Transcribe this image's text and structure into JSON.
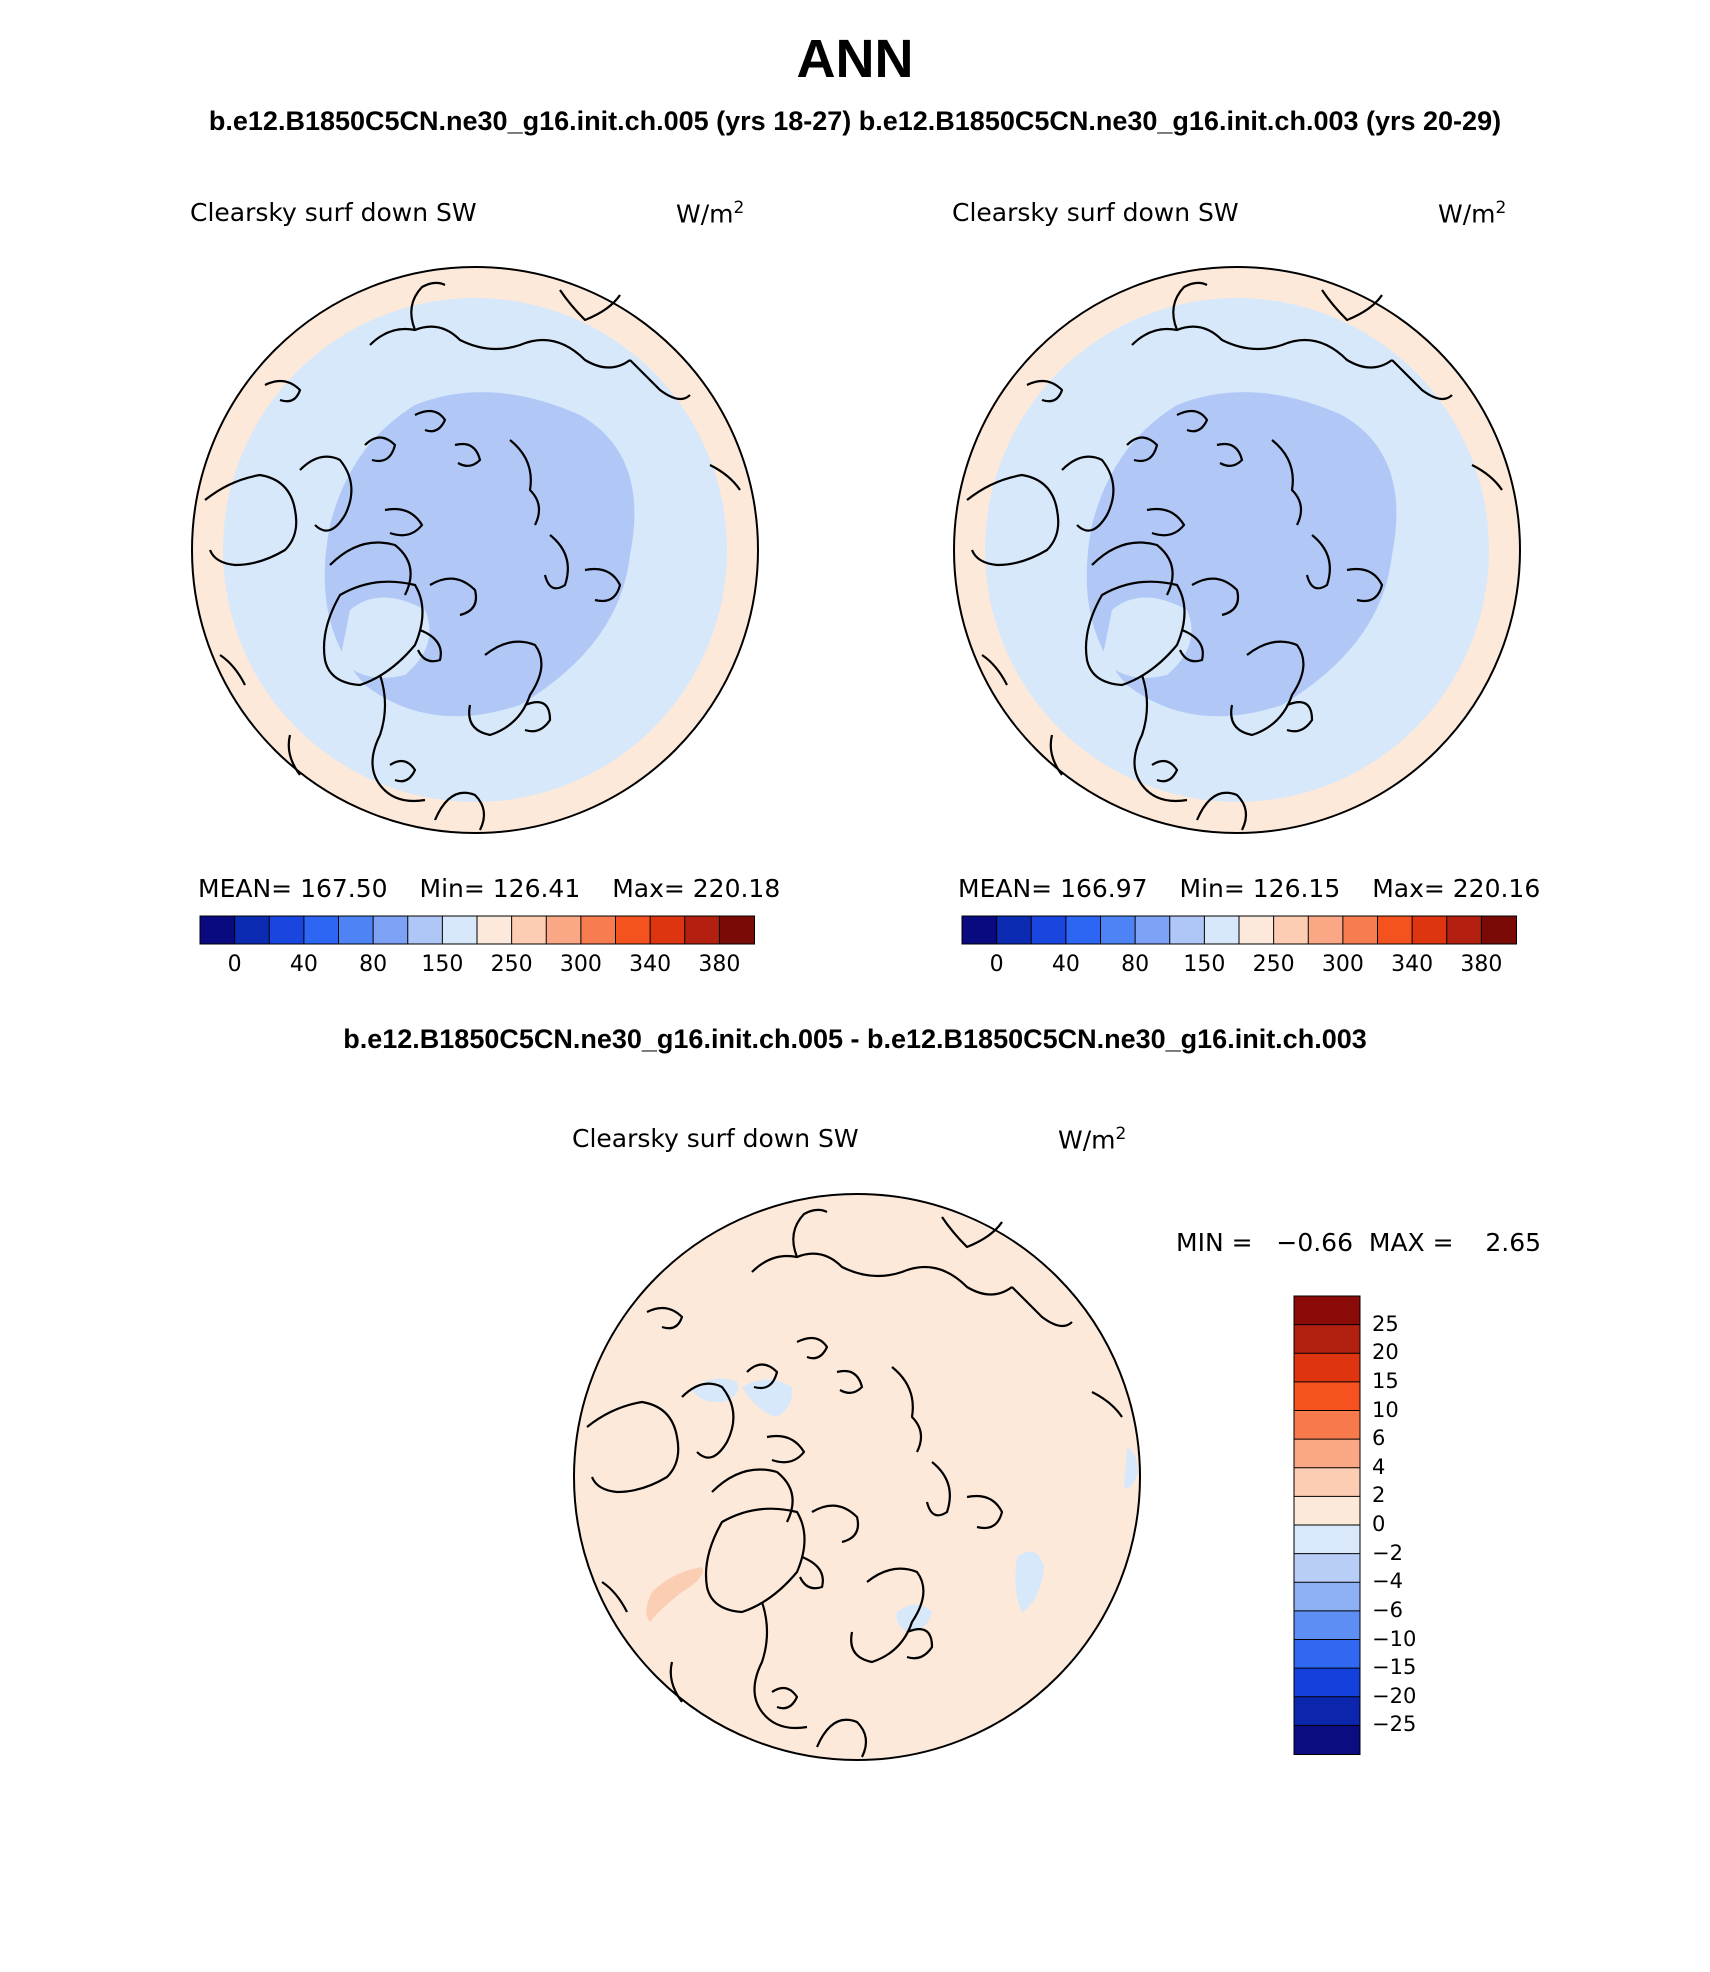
{
  "title": "ANN",
  "case_titles": "b.e12.B1850C5CN.ne30_g16.init.ch.005 (yrs 18-27) b.e12.B1850C5CN.ne30_g16.init.ch.003 (yrs 20-29)",
  "diff_title": "b.e12.B1850C5CN.ne30_g16.init.ch.005 - b.e12.B1850C5CN.ne30_g16.init.ch.003",
  "panels": [
    {
      "label": "Clearsky surf down SW",
      "units": "W/m",
      "units_sup": "2",
      "stats": {
        "mean": "MEAN= 167.50",
        "min": "Min= 126.41",
        "max": "Max= 220.18"
      }
    },
    {
      "label": "Clearsky surf down SW",
      "units": "W/m",
      "units_sup": "2",
      "stats": {
        "mean": "MEAN= 166.97",
        "min": "Min= 126.15",
        "max": "Max= 220.16"
      }
    }
  ],
  "colorbar": {
    "colors": [
      "#0a0a80",
      "#0b2bb3",
      "#1a46e0",
      "#2c66f3",
      "#4d83f5",
      "#7da2f5",
      "#aec7f7",
      "#d7e8fb",
      "#fde9dc",
      "#fcccb3",
      "#f9a785",
      "#f77d50",
      "#f4521f",
      "#dc3510",
      "#b42010",
      "#7a0a06"
    ],
    "labels": [
      "0",
      "40",
      "80",
      "150",
      "250",
      "300",
      "340",
      "380"
    ]
  },
  "diff_panel": {
    "label": "Clearsky surf down SW",
    "units": "W/m",
    "units_sup": "2",
    "minmax": "MIN =   −0.66  MAX =    2.65",
    "colors_top_to_bottom": [
      "#8a0b08",
      "#b22010",
      "#df3410",
      "#f5521f",
      "#f87a4c",
      "#f9a784",
      "#fcccb3",
      "#fde9da",
      "#d9e9fb",
      "#b8cef7",
      "#8eb0f5",
      "#5d8ef3",
      "#3068f2",
      "#1440dc",
      "#0c25ad",
      "#0a0c80"
    ],
    "labels_top_to_bottom": [
      "25",
      "20",
      "15",
      "10",
      "6",
      "4",
      "2",
      "0",
      "−2",
      "−4",
      "−6",
      "−10",
      "−15",
      "−20",
      "−25"
    ]
  },
  "map_colors": {
    "outer": "#fde9da",
    "mid": "#d7e8fb",
    "inner": "#b1c8f7",
    "diff_base": "#fde9da",
    "diff_neg": "#d7e8fb",
    "diff_pos": "#fbcdb2"
  }
}
